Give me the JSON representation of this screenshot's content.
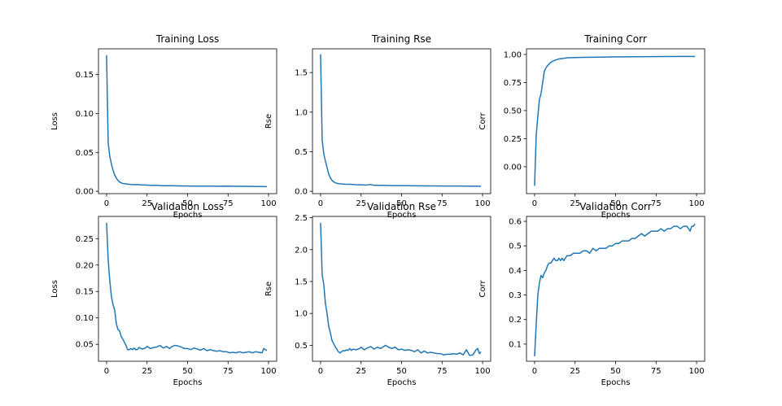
{
  "chart_data": [
    {
      "type": "line",
      "title": "Training Loss",
      "xlabel": "Epochs",
      "ylabel": "Loss",
      "xlim": [
        -5,
        105
      ],
      "ylim": [
        -0.003,
        0.183
      ],
      "xticks": [
        0,
        25,
        50,
        75,
        100
      ],
      "yticks": [
        0.0,
        0.05,
        0.1,
        0.15
      ],
      "ytick_labels": [
        "0.00",
        "0.05",
        "0.10",
        "0.15"
      ],
      "grid": false,
      "series": [
        {
          "color": "#1f77b4",
          "x": [
            0,
            1,
            2,
            3,
            4,
            5,
            6,
            7,
            8,
            9,
            10,
            12,
            15,
            18,
            20,
            22,
            25,
            28,
            30,
            33,
            35,
            40,
            45,
            50,
            55,
            60,
            65,
            70,
            75,
            80,
            85,
            90,
            95,
            99
          ],
          "y": [
            0.175,
            0.062,
            0.045,
            0.035,
            0.027,
            0.021,
            0.017,
            0.014,
            0.012,
            0.011,
            0.01,
            0.0095,
            0.0088,
            0.0085,
            0.0085,
            0.0083,
            0.008,
            0.0076,
            0.0078,
            0.0074,
            0.0072,
            0.0072,
            0.0069,
            0.0068,
            0.0067,
            0.0066,
            0.0066,
            0.0065,
            0.0066,
            0.0064,
            0.0064,
            0.0063,
            0.0062,
            0.006
          ]
        }
      ]
    },
    {
      "type": "line",
      "title": "Training Rse",
      "xlabel": "Epochs",
      "ylabel": "Rse",
      "xlim": [
        -5,
        105
      ],
      "ylim": [
        -0.03,
        1.8
      ],
      "xticks": [
        0,
        25,
        50,
        75,
        100
      ],
      "yticks": [
        0.0,
        0.5,
        1.0,
        1.5
      ],
      "ytick_labels": [
        "0.0",
        "0.5",
        "1.0",
        "1.5"
      ],
      "grid": false,
      "series": [
        {
          "color": "#1f77b4",
          "x": [
            0,
            1,
            2,
            3,
            4,
            5,
            6,
            7,
            8,
            9,
            10,
            12,
            15,
            18,
            20,
            22,
            25,
            28,
            30,
            33,
            35,
            40,
            45,
            50,
            55,
            60,
            65,
            70,
            75,
            80,
            85,
            90,
            95,
            99
          ],
          "y": [
            1.73,
            0.64,
            0.47,
            0.38,
            0.3,
            0.22,
            0.17,
            0.14,
            0.12,
            0.11,
            0.1,
            0.095,
            0.09,
            0.088,
            0.085,
            0.083,
            0.082,
            0.078,
            0.085,
            0.077,
            0.076,
            0.074,
            0.072,
            0.071,
            0.07,
            0.069,
            0.068,
            0.068,
            0.067,
            0.066,
            0.066,
            0.065,
            0.064,
            0.064
          ]
        }
      ]
    },
    {
      "type": "line",
      "title": "Training Corr",
      "xlabel": "Epochs",
      "ylabel": "Corr",
      "xlim": [
        -5,
        105
      ],
      "ylim": [
        -0.24,
        1.05
      ],
      "xticks": [
        0,
        25,
        50,
        75,
        100
      ],
      "yticks": [
        0.0,
        0.25,
        0.5,
        0.75,
        1.0
      ],
      "ytick_labels": [
        "0.00",
        "0.25",
        "0.50",
        "0.75",
        "1.00"
      ],
      "grid": false,
      "series": [
        {
          "color": "#1f77b4",
          "x": [
            0,
            1,
            2,
            3,
            4,
            5,
            6,
            7,
            8,
            10,
            12,
            15,
            18,
            20,
            25,
            30,
            40,
            50,
            60,
            70,
            80,
            90,
            99
          ],
          "y": [
            -0.17,
            0.28,
            0.45,
            0.6,
            0.65,
            0.75,
            0.85,
            0.88,
            0.9,
            0.93,
            0.945,
            0.96,
            0.965,
            0.97,
            0.972,
            0.974,
            0.976,
            0.978,
            0.979,
            0.98,
            0.981,
            0.982,
            0.982
          ]
        }
      ]
    },
    {
      "type": "line",
      "title": "Validation Loss",
      "xlabel": "Epochs",
      "ylabel": "Loss",
      "xlim": [
        -5,
        105
      ],
      "ylim": [
        0.018,
        0.292
      ],
      "xticks": [
        0,
        25,
        50,
        75,
        100
      ],
      "yticks": [
        0.05,
        0.1,
        0.15,
        0.2,
        0.25
      ],
      "ytick_labels": [
        "0.05",
        "0.10",
        "0.15",
        "0.20",
        "0.25"
      ],
      "grid": false,
      "series": [
        {
          "color": "#1f77b4",
          "x": [
            0,
            1,
            2,
            3,
            4,
            5,
            6,
            7,
            8,
            9,
            10,
            11,
            12,
            13,
            14,
            15,
            16,
            17,
            18,
            19,
            20,
            22,
            24,
            25,
            27,
            29,
            31,
            33,
            35,
            37,
            39,
            40,
            42,
            44,
            46,
            48,
            50,
            52,
            54,
            56,
            58,
            60,
            62,
            64,
            66,
            68,
            70,
            72,
            74,
            76,
            78,
            80,
            82,
            84,
            86,
            88,
            90,
            92,
            94,
            96,
            97,
            98,
            99
          ],
          "y": [
            0.28,
            0.21,
            0.17,
            0.14,
            0.125,
            0.115,
            0.09,
            0.078,
            0.076,
            0.065,
            0.06,
            0.054,
            0.048,
            0.04,
            0.04,
            0.042,
            0.04,
            0.043,
            0.04,
            0.04,
            0.044,
            0.041,
            0.043,
            0.046,
            0.042,
            0.044,
            0.045,
            0.048,
            0.043,
            0.046,
            0.042,
            0.045,
            0.048,
            0.047,
            0.045,
            0.042,
            0.042,
            0.04,
            0.043,
            0.041,
            0.039,
            0.042,
            0.038,
            0.04,
            0.038,
            0.037,
            0.038,
            0.036,
            0.036,
            0.034,
            0.035,
            0.034,
            0.036,
            0.034,
            0.035,
            0.036,
            0.034,
            0.036,
            0.035,
            0.034,
            0.042,
            0.04,
            0.038
          ]
        }
      ]
    },
    {
      "type": "line",
      "title": "Validation Rse",
      "xlabel": "Epochs",
      "ylabel": "Rse",
      "xlim": [
        -5,
        105
      ],
      "ylim": [
        0.25,
        2.52
      ],
      "xticks": [
        0,
        25,
        50,
        75,
        100
      ],
      "yticks": [
        0.5,
        1.0,
        1.5,
        2.0,
        2.5
      ],
      "ytick_labels": [
        "0.5",
        "1.0",
        "1.5",
        "2.0",
        "2.5"
      ],
      "grid": false,
      "series": [
        {
          "color": "#1f77b4",
          "x": [
            0,
            1,
            2,
            3,
            4,
            5,
            6,
            7,
            8,
            9,
            10,
            11,
            12,
            13,
            14,
            15,
            16,
            17,
            18,
            19,
            20,
            22,
            24,
            25,
            27,
            29,
            31,
            33,
            35,
            37,
            39,
            40,
            42,
            44,
            46,
            48,
            50,
            52,
            54,
            56,
            58,
            60,
            62,
            64,
            66,
            68,
            70,
            72,
            74,
            76,
            78,
            80,
            82,
            84,
            86,
            88,
            90,
            92,
            94,
            96,
            97,
            98,
            99
          ],
          "y": [
            2.42,
            1.6,
            1.45,
            1.15,
            1.0,
            0.8,
            0.7,
            0.58,
            0.53,
            0.48,
            0.44,
            0.4,
            0.38,
            0.4,
            0.42,
            0.41,
            0.43,
            0.42,
            0.45,
            0.42,
            0.44,
            0.43,
            0.45,
            0.47,
            0.43,
            0.46,
            0.48,
            0.44,
            0.47,
            0.45,
            0.48,
            0.5,
            0.47,
            0.45,
            0.47,
            0.43,
            0.44,
            0.42,
            0.43,
            0.42,
            0.4,
            0.43,
            0.38,
            0.41,
            0.38,
            0.39,
            0.38,
            0.37,
            0.37,
            0.35,
            0.36,
            0.36,
            0.37,
            0.36,
            0.38,
            0.35,
            0.43,
            0.34,
            0.35,
            0.43,
            0.45,
            0.37,
            0.4
          ]
        }
      ]
    },
    {
      "type": "line",
      "title": "Validation Corr",
      "xlabel": "Epochs",
      "ylabel": "Corr",
      "xlim": [
        -5,
        105
      ],
      "ylim": [
        0.03,
        0.62
      ],
      "xticks": [
        0,
        25,
        50,
        75,
        100
      ],
      "yticks": [
        0.1,
        0.2,
        0.3,
        0.4,
        0.5,
        0.6
      ],
      "ytick_labels": [
        "0.1",
        "0.2",
        "0.3",
        "0.4",
        "0.5",
        "0.6"
      ],
      "grid": false,
      "series": [
        {
          "color": "#1f77b4",
          "x": [
            0,
            1,
            2,
            3,
            4,
            5,
            6,
            7,
            8,
            9,
            10,
            11,
            12,
            13,
            14,
            15,
            16,
            17,
            18,
            19,
            20,
            22,
            24,
            26,
            28,
            30,
            32,
            34,
            36,
            38,
            40,
            42,
            44,
            46,
            48,
            50,
            52,
            54,
            56,
            58,
            60,
            62,
            64,
            66,
            68,
            70,
            72,
            74,
            76,
            78,
            80,
            82,
            84,
            86,
            88,
            90,
            92,
            94,
            95,
            96,
            97,
            98,
            99
          ],
          "y": [
            0.05,
            0.18,
            0.3,
            0.35,
            0.38,
            0.37,
            0.39,
            0.4,
            0.42,
            0.43,
            0.43,
            0.44,
            0.45,
            0.44,
            0.44,
            0.45,
            0.44,
            0.45,
            0.44,
            0.45,
            0.46,
            0.46,
            0.47,
            0.47,
            0.47,
            0.48,
            0.48,
            0.47,
            0.49,
            0.48,
            0.49,
            0.49,
            0.49,
            0.5,
            0.5,
            0.51,
            0.51,
            0.52,
            0.52,
            0.52,
            0.53,
            0.53,
            0.54,
            0.55,
            0.54,
            0.55,
            0.56,
            0.56,
            0.56,
            0.57,
            0.56,
            0.57,
            0.57,
            0.58,
            0.58,
            0.57,
            0.58,
            0.58,
            0.57,
            0.56,
            0.58,
            0.58,
            0.59
          ]
        }
      ]
    }
  ]
}
